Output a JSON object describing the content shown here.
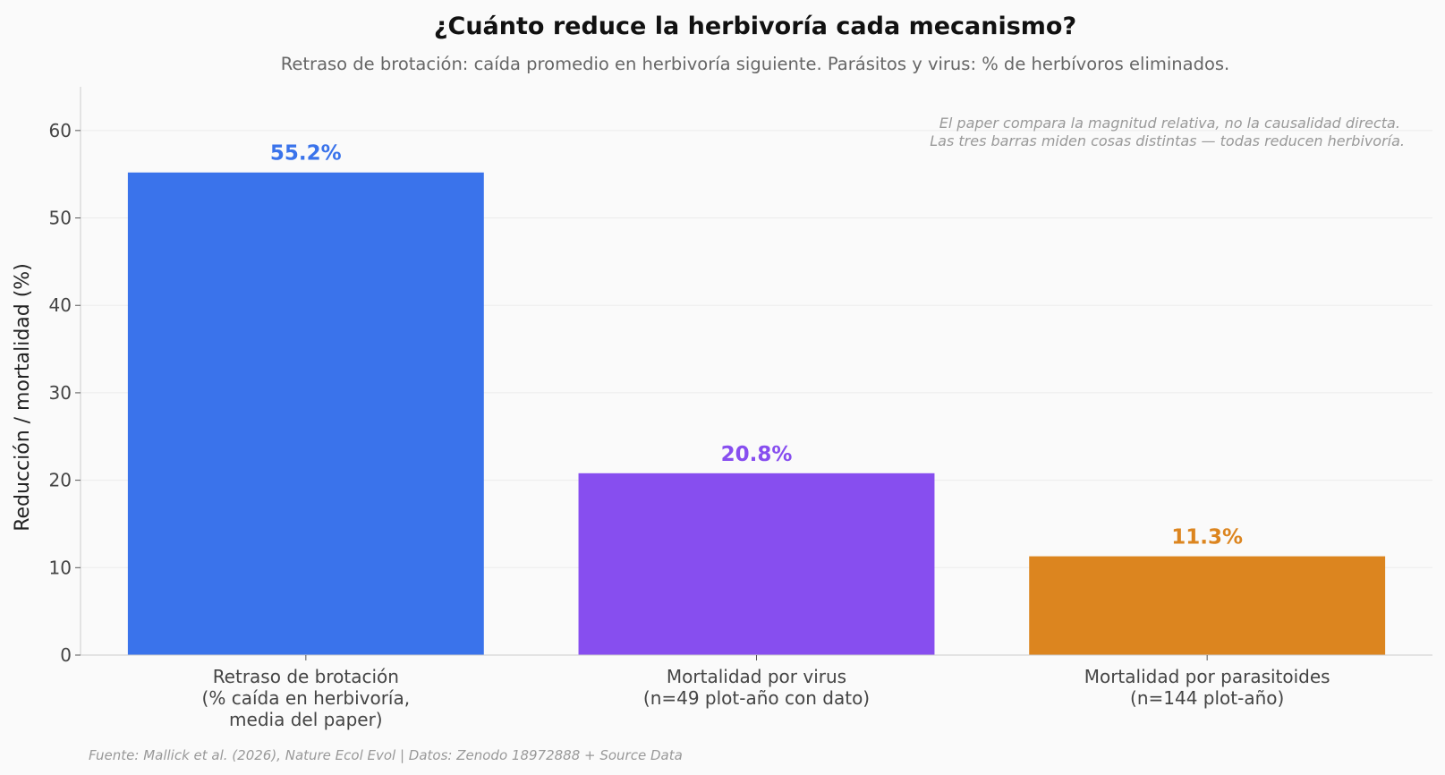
{
  "chart_data": {
    "type": "bar",
    "title": "¿Cuánto reduce la herbivoría cada mecanismo?",
    "subtitle": "Retraso de brotación: caída promedio en herbivoría siguiente. Parásitos y virus: % de herbívoros eliminados.",
    "ylabel": "Reducción / mortalidad (%)",
    "xlabel": "",
    "ylim": [
      0,
      65
    ],
    "yticks": [
      0,
      10,
      20,
      30,
      40,
      50,
      60
    ],
    "grid": "horizontal",
    "categories": [
      [
        "Retraso de brotación",
        "(% caída en herbivoría,",
        "media del paper)"
      ],
      [
        "Mortalidad por virus",
        "(n=49 plot-año con dato)"
      ],
      [
        "Mortalidad por parasitoides",
        "(n=144 plot-año)"
      ]
    ],
    "values": [
      55.2,
      20.8,
      11.3
    ],
    "value_labels": [
      "55.2%",
      "20.8%",
      "11.3%"
    ],
    "colors": [
      "#3a73eb",
      "#874eef",
      "#dc851f"
    ],
    "annotation": [
      "El paper compara la magnitud relativa, no la causalidad directa.",
      "Las tres barras miden cosas distintas — todas reducen herbivoría."
    ],
    "source": "Fuente: Mallick et al. (2026), Nature Ecol Evol | Datos: Zenodo 18972888 + Source Data"
  }
}
